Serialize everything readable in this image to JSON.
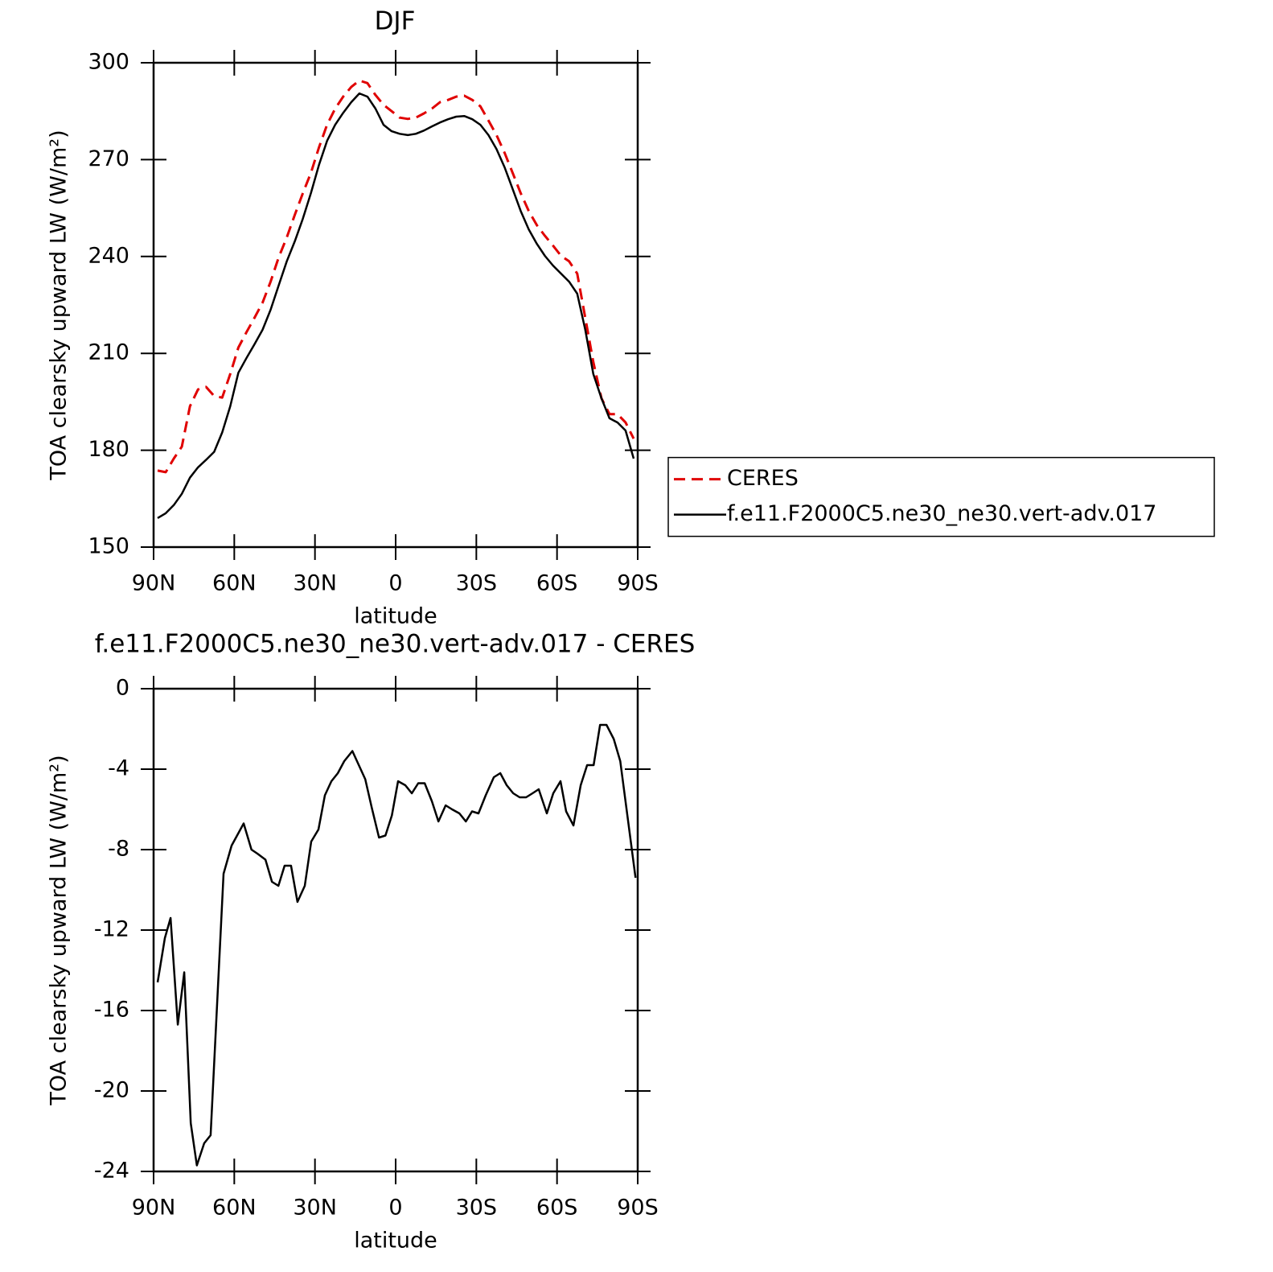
{
  "chart_data": [
    {
      "type": "line",
      "title": "DJF",
      "xlabel": "latitude",
      "ylabel": "TOA clearsky upward LW (W/m²)",
      "x": [
        88.5,
        85.5,
        82.5,
        79.5,
        76.5,
        73.5,
        70.5,
        67.5,
        64.5,
        61.5,
        58.5,
        55.5,
        52.5,
        49.5,
        46.5,
        43.5,
        40.5,
        37.5,
        34.5,
        31.5,
        28.5,
        25.5,
        22.5,
        19.5,
        16.5,
        13.5,
        10.5,
        7.5,
        4.5,
        1.5,
        -1.5,
        -4.5,
        -7.5,
        -10.5,
        -13.5,
        -16.5,
        -19.5,
        -22.5,
        -25.5,
        -28.5,
        -31.5,
        -34.5,
        -37.5,
        -40.5,
        -43.5,
        -46.5,
        -49.5,
        -52.5,
        -55.5,
        -58.5,
        -61.5,
        -64.5,
        -67.5,
        -70.5,
        -73.5,
        -76.5,
        -79.5,
        -82.5,
        -85.5,
        -88.5
      ],
      "series": [
        {
          "name": "CERES",
          "color": "#e00000",
          "dashed": true,
          "values": [
            173.7,
            173.2,
            177.4,
            181.1,
            193.6,
            198.8,
            199.6,
            196.8,
            196.3,
            203.6,
            211.8,
            216.5,
            221,
            225.7,
            232.2,
            239.7,
            245.9,
            252.9,
            259.6,
            265.9,
            273.8,
            280.8,
            285.8,
            289.5,
            292.5,
            294.5,
            293.7,
            290,
            287,
            285,
            283,
            282.6,
            283,
            284.3,
            285.8,
            287.8,
            288.5,
            289.5,
            289.8,
            288.5,
            286.5,
            282.1,
            277.6,
            272.1,
            265.9,
            259.6,
            254.1,
            249.7,
            246.4,
            243.4,
            240.2,
            238.5,
            234.7,
            221,
            207.3,
            196.1,
            191.2,
            191.2,
            188.6,
            183.6
          ]
        },
        {
          "name": "f.e11.F2000C5.ne30_ne30.vert-adv.017",
          "color": "#000000",
          "dashed": false,
          "values": [
            159,
            160.5,
            163,
            166.5,
            171.5,
            174.7,
            177,
            179.5,
            185.5,
            193.6,
            204,
            208.5,
            212.8,
            217.3,
            223.5,
            231,
            238.5,
            244.7,
            251.7,
            259.6,
            268.4,
            275.8,
            280.8,
            284.5,
            287.8,
            290.5,
            289.5,
            285.8,
            280.8,
            278.8,
            278,
            277.6,
            278,
            279,
            280.3,
            281.5,
            282.5,
            283.3,
            283.5,
            282.5,
            280.8,
            277.6,
            273.3,
            267.6,
            260.9,
            254.1,
            248.4,
            243.9,
            240.2,
            237.2,
            234.7,
            232.2,
            228.5,
            217.3,
            203.6,
            196.1,
            189.9,
            188.6,
            186.1,
            177.4
          ]
        }
      ],
      "xlim": [
        90,
        -90
      ],
      "xticks": [
        {
          "value": 90,
          "label": "90N"
        },
        {
          "value": 60,
          "label": "60N"
        },
        {
          "value": 30,
          "label": "30N"
        },
        0,
        {
          "value": -30,
          "label": "30S"
        },
        {
          "value": -60,
          "label": "60S"
        },
        {
          "value": -90,
          "label": "90S"
        }
      ],
      "ylim": [
        150,
        300
      ],
      "yticks": [
        150,
        180,
        210,
        240,
        270,
        300
      ],
      "legend": "right"
    },
    {
      "type": "line",
      "title": "f.e11.F2000C5.ne30_ne30.vert-adv.017 - CERES",
      "xlabel": "latitude",
      "ylabel": "TOA clearsky upward LW (W/m²)",
      "x": [
        88.5,
        85.8,
        83.7,
        81.0,
        78.6,
        76.2,
        73.9,
        71.2,
        68.8,
        64.0,
        61.0,
        56.5,
        53.6,
        51.4,
        48.4,
        46.0,
        43.6,
        41.3,
        38.9,
        36.5,
        33.8,
        31.4,
        28.7,
        26.3,
        23.9,
        21.5,
        19.1,
        16.1,
        13.7,
        11.3,
        8.9,
        6.2,
        3.8,
        1.4,
        -0.9,
        -3.6,
        -6.0,
        -8.4,
        -10.8,
        -13.5,
        -15.9,
        -18.6,
        -21.0,
        -23.7,
        -26.1,
        -28.4,
        -30.8,
        -33.5,
        -36.5,
        -38.9,
        -41.3,
        -43.7,
        -46.1,
        -48.5,
        -50.9,
        -53.2,
        -56.2,
        -58.6,
        -61.3,
        -63.4,
        -66.1,
        -68.8,
        -71.2,
        -73.6,
        -76.0,
        -78.4,
        -81.1,
        -83.5,
        -89.2
      ],
      "color": "#000000",
      "values": [
        -14.6,
        -12.4,
        -11.4,
        -16.7,
        -14.1,
        -21.6,
        -23.7,
        -22.6,
        -22.2,
        -9.2,
        -7.8,
        -6.7,
        -8.0,
        -8.2,
        -8.5,
        -9.6,
        -9.8,
        -8.8,
        -8.8,
        -10.6,
        -9.8,
        -7.6,
        -7.0,
        -5.3,
        -4.6,
        -4.2,
        -3.6,
        -3.1,
        -3.8,
        -4.5,
        -5.9,
        -7.4,
        -7.3,
        -6.3,
        -4.6,
        -4.8,
        -5.2,
        -4.7,
        -4.7,
        -5.6,
        -6.6,
        -5.8,
        -6.0,
        -6.2,
        -6.6,
        -6.1,
        -6.2,
        -5.3,
        -4.4,
        -4.2,
        -4.8,
        -5.2,
        -5.4,
        -5.4,
        -5.2,
        -5.0,
        -6.2,
        -5.2,
        -4.6,
        -6.1,
        -6.8,
        -4.8,
        -3.8,
        -3.8,
        -1.8,
        -1.8,
        -2.5,
        -3.6,
        -9.4
      ],
      "xlim": [
        90,
        -90
      ],
      "xticks": [
        {
          "value": 90,
          "label": "90N"
        },
        {
          "value": 60,
          "label": "60N"
        },
        {
          "value": 30,
          "label": "30N"
        },
        0,
        {
          "value": -30,
          "label": "30S"
        },
        {
          "value": -60,
          "label": "60S"
        },
        {
          "value": -90,
          "label": "90S"
        }
      ],
      "ylim": [
        -24,
        0
      ],
      "yticks": [
        -24,
        -20,
        -16,
        -12,
        -8,
        -4,
        0
      ]
    }
  ]
}
